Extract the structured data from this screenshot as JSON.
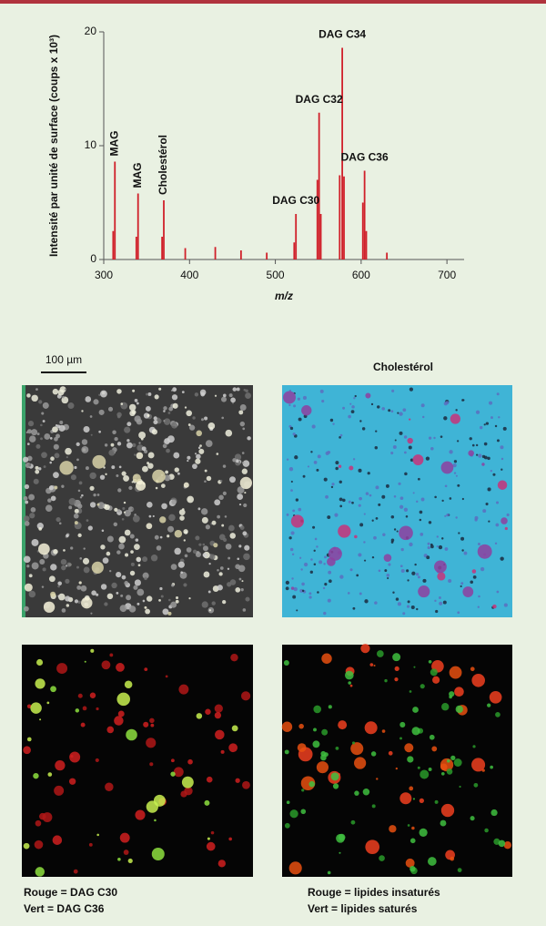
{
  "chart_data": {
    "type": "stem",
    "y_label": "Intensité par unité de surface (coups x 10³)",
    "x_label": "m/z",
    "color": "#d0202a",
    "x": [
      311,
      313,
      338,
      340,
      368,
      370,
      395,
      430,
      460,
      490,
      522,
      524,
      549,
      551,
      553,
      575,
      578,
      580,
      602,
      604,
      606,
      630
    ],
    "values": [
      2.5,
      8.6,
      2,
      5.8,
      2,
      5.2,
      1,
      1.1,
      0.8,
      0.6,
      1.5,
      4,
      7,
      12.9,
      4,
      7.4,
      18.6,
      7.3,
      5,
      7.8,
      2.5,
      0.6
    ],
    "xlim": [
      300,
      720
    ],
    "xticks": [
      300,
      400,
      500,
      600,
      700
    ],
    "ylim": [
      0,
      20
    ],
    "yticks": [
      0,
      10,
      20
    ],
    "annotations": [
      {
        "text": "MAG",
        "x": 313
      },
      {
        "text": "MAG",
        "x": 340
      },
      {
        "text": "Cholestérol",
        "x": 370
      },
      {
        "text": "DAG C30",
        "x": 524
      },
      {
        "text": "DAG C32",
        "x": 551
      },
      {
        "text": "DAG C34",
        "x": 578
      },
      {
        "text": "DAG C36",
        "x": 604
      }
    ]
  },
  "figure": {
    "scale_bar": "100 µm",
    "panel_title": "Cholestérol",
    "caption_left": [
      "Rouge = DAG C30",
      "Vert = DAG C36"
    ],
    "caption_right": [
      "Rouge = lipides insaturés",
      "Vert = lipides saturés"
    ]
  }
}
